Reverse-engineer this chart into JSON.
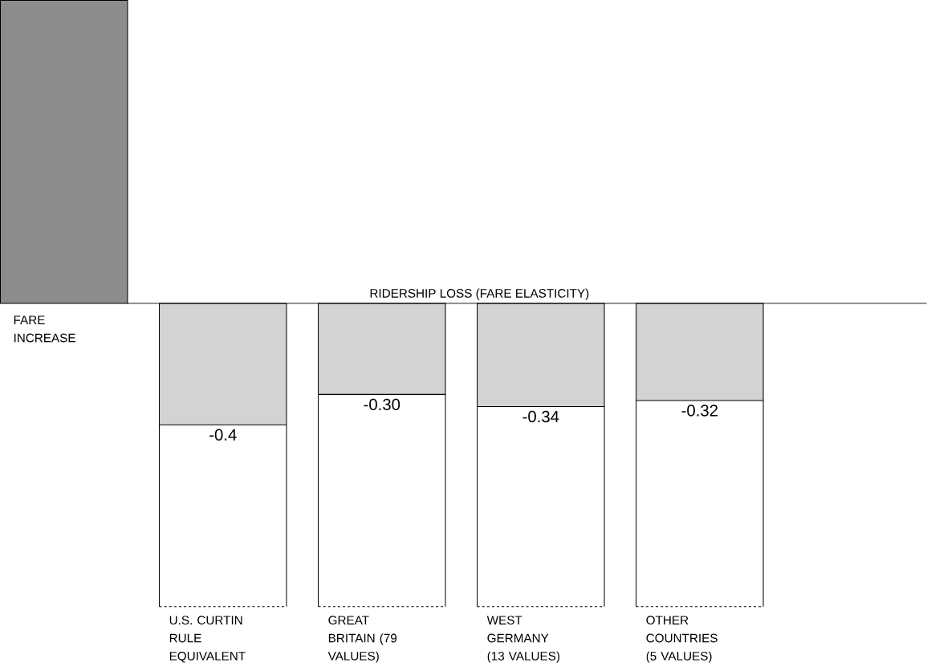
{
  "chart_data": {
    "type": "bar",
    "title": "RIDERSHIP LOSS (FARE ELASTICITY)",
    "categories": [
      "FARE INCREASE",
      "U.S. CURTIN RULE EQUIVALENT",
      "GREAT BRITAIN (79 VALUES)",
      "WEST GERMANY (13 VALUES)",
      "OTHER COUNTRIES (5 VALUES)"
    ],
    "values": [
      1,
      -0.4,
      -0.3,
      -0.34,
      -0.32
    ],
    "value_labels": [
      null,
      "-0.4",
      "-0.30",
      "-0.34",
      "-0.32"
    ],
    "colors": [
      "#8c8c8c",
      "#d3d3d3",
      "#d3d3d3",
      "#d3d3d3",
      "#d3d3d3"
    ]
  }
}
